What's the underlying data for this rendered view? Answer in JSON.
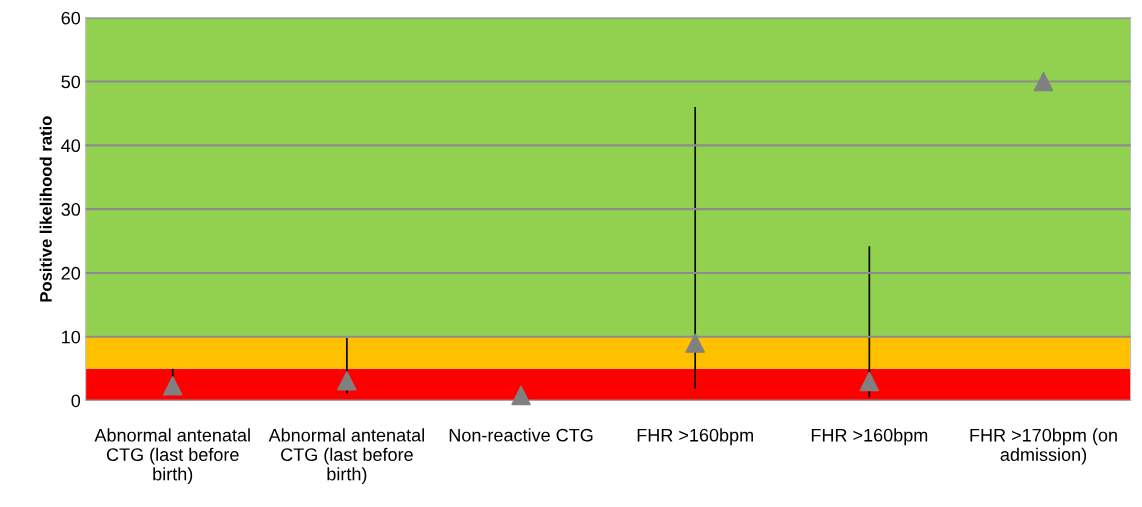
{
  "chart_data": {
    "type": "scatter",
    "ylabel": "Positive likelihood ratio",
    "categories": [
      "Abnormal antenatal CTG (last before birth)",
      "Abnormal antenatal CTG (last before birth)",
      "Non-reactive CTG",
      "FHR >160bpm",
      "FHR >160bpm",
      "FHR >170bpm (on admission)"
    ],
    "series": [
      {
        "color": "#808080",
        "values": [
          2.3,
          3.1,
          0.8,
          9.0,
          3.0,
          50
        ],
        "errors": [
          [
            2.3,
            5.0
          ],
          [
            1.1,
            9.8
          ],
          null,
          [
            1.9,
            46
          ],
          [
            0.5,
            24.2
          ],
          null
        ]
      }
    ],
    "marker": "triangle",
    "ylim": [
      0,
      60
    ],
    "yticks": [
      0,
      10,
      20,
      30,
      40,
      50,
      60
    ],
    "grid": "y",
    "bands": [
      {
        "axis": "y",
        "from": 0,
        "to": 5,
        "color": "#ff0000"
      },
      {
        "axis": "y",
        "from": 5,
        "to": 10,
        "color": "#ffc000"
      },
      {
        "axis": "y",
        "from": 10,
        "to": 60,
        "color": "#92d050"
      }
    ]
  }
}
